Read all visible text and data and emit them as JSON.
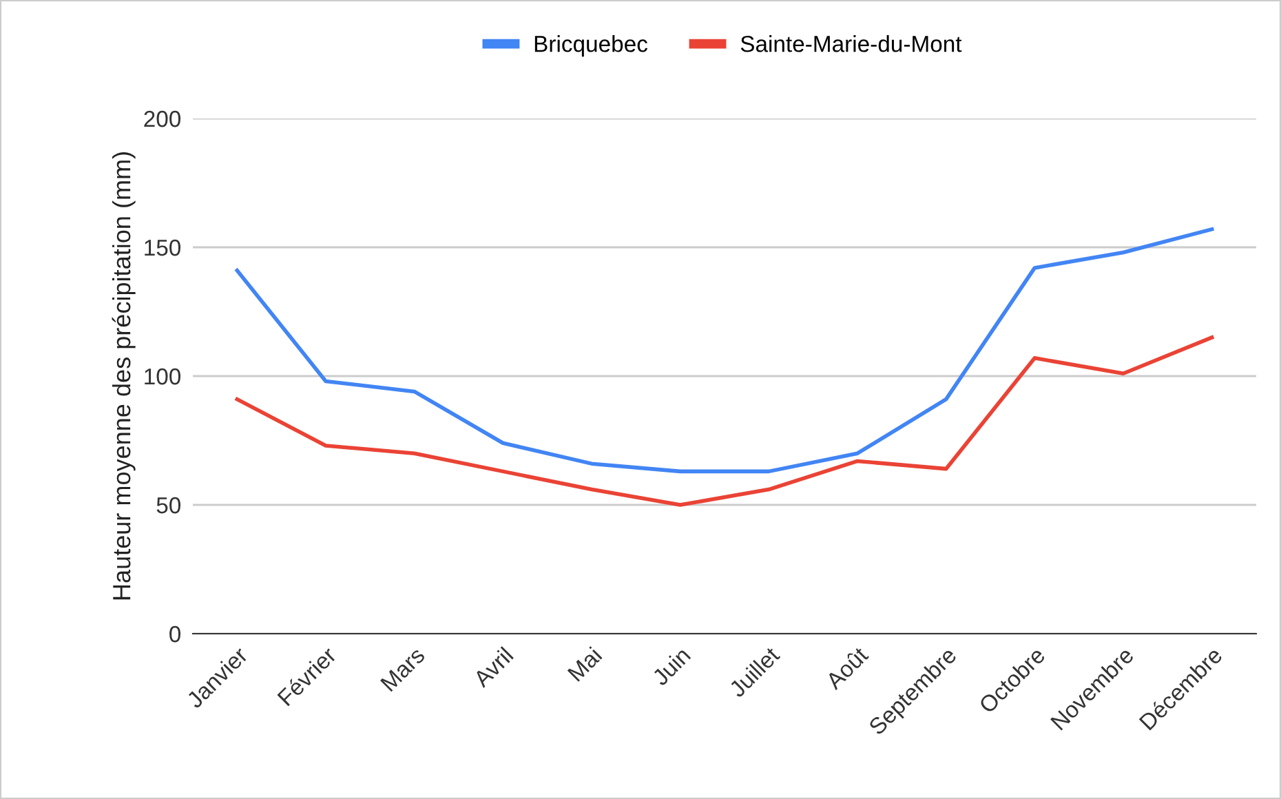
{
  "chart_data": {
    "type": "line",
    "ylabel": "Hauteur moyenne des précipitation (mm)",
    "categories": [
      "Janvier",
      "Février",
      "Mars",
      "Avril",
      "Mai",
      "Juin",
      "Juillet",
      "Août",
      "Septembre",
      "Octobre",
      "Novembre",
      "Décembre"
    ],
    "series": [
      {
        "name": "Bricquebec",
        "color": "#4285f4",
        "values": [
          141,
          98,
          94,
          74,
          66,
          63,
          63,
          70,
          91,
          142,
          148,
          157
        ]
      },
      {
        "name": "Sainte-Marie-du-Mont",
        "color": "#ea4335",
        "values": [
          91,
          73,
          70,
          63,
          56,
          50,
          56,
          67,
          64,
          107,
          101,
          115
        ]
      }
    ],
    "ylim": [
      0,
      200
    ],
    "yticks": [
      0,
      50,
      100,
      150,
      200
    ],
    "grid": "y",
    "legend": "top",
    "marker": "none",
    "line_style": "solid"
  }
}
